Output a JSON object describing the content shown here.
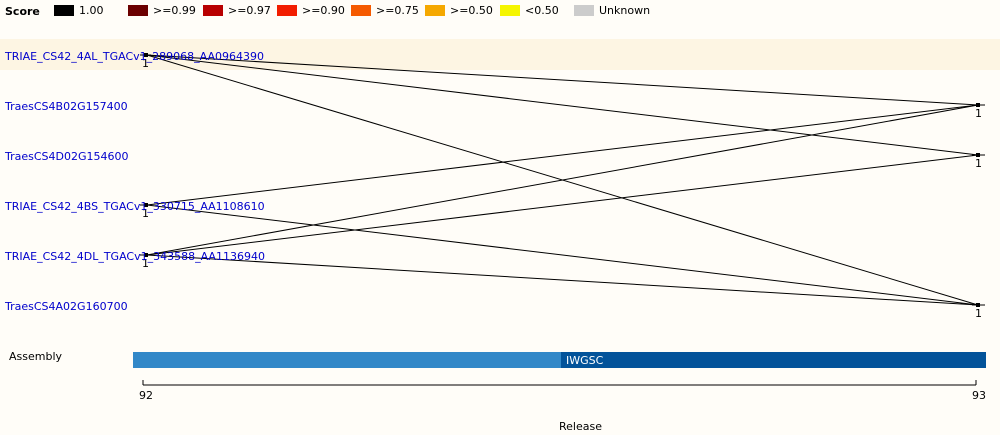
{
  "legend": {
    "title": "Score",
    "items": [
      {
        "label": "1.00",
        "color": "#000000"
      },
      {
        "label": ">=0.99",
        "color": "#6b0000"
      },
      {
        "label": ">=0.97",
        "color": "#b80000"
      },
      {
        "label": ">=0.90",
        "color": "#f21d00"
      },
      {
        "label": ">=0.75",
        "color": "#f55a00"
      },
      {
        "label": ">=0.50",
        "color": "#f5a800"
      },
      {
        "label": "<0.50",
        "color": "#f5f500"
      },
      {
        "label": "Unknown",
        "color": "#cccccc"
      }
    ]
  },
  "genes": [
    "TRIAE_CS42_4AL_TGACv1_289068_AA0964390",
    "TraesCS4B02G157400",
    "TraesCS4D02G154600",
    "TRIAE_CS42_4BS_TGACv1_330715_AA1108610",
    "TRIAE_CS42_4DL_TGACv1_343588_AA1136940",
    "TraesCS4A02G160700"
  ],
  "left_copy_labels": [
    "1",
    "1",
    "1"
  ],
  "right_copy_labels": [
    "1",
    "1",
    "1"
  ],
  "assembly": {
    "label": "Assembly",
    "name": "IWGSC"
  },
  "release": {
    "title": "Release",
    "ticks": [
      "92",
      "93"
    ]
  }
}
